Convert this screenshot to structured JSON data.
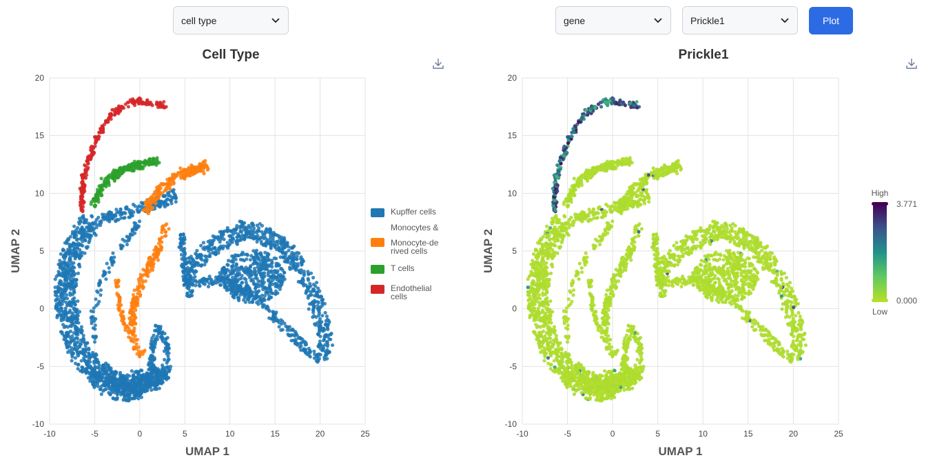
{
  "left_panel": {
    "dropdown": {
      "value": "cell type"
    },
    "download_icon": "download-icon"
  },
  "right_panel": {
    "dropdown_mode": {
      "value": "gene"
    },
    "dropdown_gene": {
      "value": "Prickle1"
    },
    "plot_button": {
      "label": "Plot"
    },
    "download_icon": "download-icon"
  },
  "chart_data": [
    {
      "type": "scatter",
      "title": "Cell Type",
      "xlabel": "UMAP 1",
      "ylabel": "UMAP 2",
      "xlim": [
        -10,
        25
      ],
      "ylim": [
        -10,
        20
      ],
      "xticks": [
        "-10",
        "-5",
        "0",
        "5",
        "10",
        "15",
        "20",
        "25"
      ],
      "yticks": [
        "-10",
        "-5",
        "0",
        "5",
        "10",
        "15",
        "20"
      ],
      "grid": true,
      "legend_position": "right",
      "series": [
        {
          "name": "Kupffer cells",
          "color": "#1f77b4",
          "regions": [
            {
              "kind": "band",
              "path": [
                [
                  -5.5,
                  7.5
                ],
                [
                  -7.5,
                  5
                ],
                [
                  -8.3,
                  2
                ],
                [
                  -8,
                  -1
                ],
                [
                  -6.5,
                  -4
                ],
                [
                  -4,
                  -6
                ],
                [
                  -2,
                  -7
                ],
                [
                  0,
                  -6.5
                ],
                [
                  2,
                  -6
                ]
              ],
              "width": 2.3,
              "n": 950
            },
            {
              "kind": "band",
              "path": [
                [
                  -5.5,
                  7.5
                ],
                [
                  -3,
                  8
                ],
                [
                  0,
                  8.7
                ],
                [
                  2.5,
                  9.3
                ],
                [
                  4,
                  9.8
                ]
              ],
              "width": 1.0,
              "n": 170
            },
            {
              "kind": "band",
              "path": [
                [
                  -5,
                  -5
                ],
                [
                  -3,
                  -6.6
                ],
                [
                  -1,
                  -7
                ],
                [
                  1,
                  -6.3
                ],
                [
                  3,
                  -5.5
                ]
              ],
              "width": 1.4,
              "n": 330
            },
            {
              "kind": "band",
              "path": [
                [
                  1.2,
                  -5.5
                ],
                [
                  1.5,
                  -3
                ],
                [
                  2.1,
                  -1.5
                ],
                [
                  3,
                  -3
                ],
                [
                  3.2,
                  -5.5
                ]
              ],
              "width": 0.5,
              "n": 110
            },
            {
              "kind": "band",
              "path": [
                [
                  0,
                  7.5
                ],
                [
                  -2.5,
                  5
                ],
                [
                  -4.5,
                  2
                ],
                [
                  -5.2,
                  -1
                ],
                [
                  -4.8,
                  -3
                ]
              ],
              "width": 0.5,
              "n": 90
            },
            {
              "kind": "band",
              "path": [
                [
                  5,
                  3
                ],
                [
                  8,
                  5.5
                ],
                [
                  12,
                  7
                ],
                [
                  16,
                  5.5
                ],
                [
                  19,
                  2
                ],
                [
                  20.5,
                  -2
                ],
                [
                  20.5,
                  -4.5
                ]
              ],
              "width": 1.6,
              "n": 600
            },
            {
              "kind": "band",
              "path": [
                [
                  5,
                  2.2
                ],
                [
                  9,
                  2.5
                ],
                [
                  13,
                  1
                ],
                [
                  16,
                  -1.5
                ],
                [
                  18.5,
                  -3.5
                ],
                [
                  20,
                  -4.3
                ]
              ],
              "width": 0.8,
              "n": 240
            },
            {
              "kind": "blob",
              "cx": 12.5,
              "cy": 2.8,
              "rx": 3.6,
              "ry": 2.3,
              "n": 420
            },
            {
              "kind": "band",
              "path": [
                [
                  4.5,
                  6.5
                ],
                [
                  5,
                  4
                ],
                [
                  5.5,
                  1
                ]
              ],
              "width": 0.6,
              "n": 90
            }
          ]
        },
        {
          "name": "Monocytes & Monocyte-derived cells",
          "color": "#ff7f0e",
          "regions": [
            {
              "kind": "band",
              "path": [
                [
                  0.5,
                  8.5
                ],
                [
                  2.5,
                  10.5
                ],
                [
                  4.5,
                  11.6
                ],
                [
                  6.5,
                  12.2
                ],
                [
                  7.5,
                  12.5
                ]
              ],
              "width": 0.8,
              "n": 200
            },
            {
              "kind": "band",
              "path": [
                [
                  3,
                  7.5
                ],
                [
                  2,
                  5
                ],
                [
                  0.5,
                  3
                ],
                [
                  -0.5,
                  0.8
                ],
                [
                  -1,
                  -1.8
                ],
                [
                  -0.2,
                  -3.5
                ],
                [
                  0.3,
                  -4
                ]
              ],
              "width": 0.7,
              "n": 210
            },
            {
              "kind": "band",
              "path": [
                [
                  -2.5,
                  2.5
                ],
                [
                  -2.2,
                  0
                ],
                [
                  -1.5,
                  -2
                ]
              ],
              "width": 0.3,
              "n": 50
            }
          ]
        },
        {
          "name": "T cells",
          "color": "#2ca02c",
          "regions": [
            {
              "kind": "band",
              "path": [
                [
                  -5.2,
                  9
                ],
                [
                  -4,
                  10.8
                ],
                [
                  -2,
                  12
                ],
                [
                  0,
                  12.5
                ],
                [
                  2,
                  12.8
                ]
              ],
              "width": 0.55,
              "n": 230
            }
          ]
        },
        {
          "name": "Endothelial cells",
          "color": "#d62728",
          "regions": [
            {
              "kind": "band",
              "path": [
                [
                  -6.5,
                  8.5
                ],
                [
                  -6.2,
                  11.5
                ],
                [
                  -5,
                  14.5
                ],
                [
                  -3,
                  17
                ],
                [
                  -0.5,
                  18
                ],
                [
                  1.5,
                  17.8
                ],
                [
                  3,
                  17.5
                ]
              ],
              "width": 0.35,
              "n": 260
            }
          ]
        }
      ]
    },
    {
      "type": "scatter",
      "title": "Prickle1",
      "xlabel": "UMAP 1",
      "ylabel": "UMAP 2",
      "xlim": [
        -10,
        25
      ],
      "ylim": [
        -10,
        20
      ],
      "xticks": [
        "-10",
        "-5",
        "0",
        "5",
        "10",
        "15",
        "20",
        "25"
      ],
      "yticks": [
        "-10",
        "-5",
        "0",
        "5",
        "10",
        "15",
        "20"
      ],
      "grid": true,
      "colorbar": {
        "high_label": "High",
        "low_label": "Low",
        "max_label": "3.771",
        "min_label": "0.000",
        "max": 3.771,
        "min": 0,
        "colors": [
          "#440154",
          "#3b528b",
          "#21918c",
          "#5ec962",
          "#b5de2b"
        ]
      },
      "expression_note_regions": "Endothelial cells high expression; others near 0"
    }
  ]
}
